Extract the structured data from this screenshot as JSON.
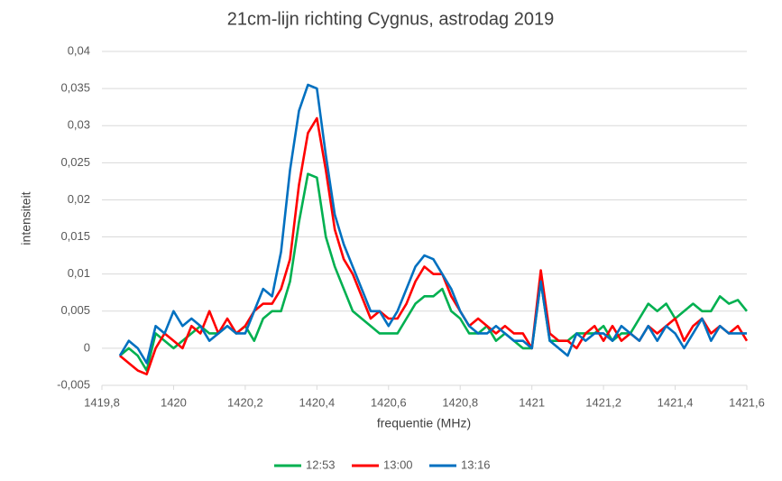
{
  "chart_data": {
    "type": "line",
    "title": "21cm-lijn richting Cygnus, astrodag 2019",
    "x_label": "frequentie (MHz)",
    "y_label": "intensiteit",
    "x": [
      1419.85,
      1419.875,
      1419.9,
      1419.925,
      1419.95,
      1419.975,
      1420,
      1420.025,
      1420.05,
      1420.075,
      1420.1,
      1420.125,
      1420.15,
      1420.175,
      1420.2,
      1420.225,
      1420.25,
      1420.275,
      1420.3,
      1420.325,
      1420.35,
      1420.375,
      1420.4,
      1420.425,
      1420.45,
      1420.475,
      1420.5,
      1420.525,
      1420.55,
      1420.575,
      1420.6,
      1420.625,
      1420.65,
      1420.675,
      1420.7,
      1420.725,
      1420.75,
      1420.775,
      1420.8,
      1420.825,
      1420.85,
      1420.875,
      1420.9,
      1420.925,
      1420.95,
      1420.975,
      1421,
      1421.025,
      1421.05,
      1421.075,
      1421.1,
      1421.125,
      1421.15,
      1421.175,
      1421.2,
      1421.225,
      1421.25,
      1421.275,
      1421.3,
      1421.325,
      1421.35,
      1421.375,
      1421.4,
      1421.425,
      1421.45,
      1421.475,
      1421.5,
      1421.525,
      1421.55,
      1421.575,
      1421.6
    ],
    "series": [
      {
        "name": "12:53",
        "color": "#00b050",
        "values": [
          -0.001,
          0.0,
          -0.001,
          -0.003,
          0.002,
          0.001,
          0.0,
          0.001,
          0.002,
          0.003,
          0.002,
          0.002,
          0.003,
          0.002,
          0.003,
          0.001,
          0.004,
          0.005,
          0.005,
          0.009,
          0.017,
          0.0235,
          0.023,
          0.015,
          0.011,
          0.008,
          0.005,
          0.004,
          0.003,
          0.002,
          0.002,
          0.002,
          0.004,
          0.006,
          0.007,
          0.007,
          0.008,
          0.005,
          0.004,
          0.002,
          0.002,
          0.003,
          0.001,
          0.002,
          0.001,
          0.0,
          0.0,
          0.009,
          0.001,
          0.001,
          0.001,
          0.002,
          0.002,
          0.002,
          0.003,
          0.001,
          0.002,
          0.002,
          0.004,
          0.006,
          0.005,
          0.006,
          0.004,
          0.005,
          0.006,
          0.005,
          0.005,
          0.007,
          0.006,
          0.0065,
          0.005
        ]
      },
      {
        "name": "13:00",
        "color": "#ff0000",
        "values": [
          -0.001,
          -0.002,
          -0.003,
          -0.0035,
          0.0,
          0.002,
          0.001,
          0.0,
          0.003,
          0.002,
          0.005,
          0.002,
          0.004,
          0.002,
          0.003,
          0.005,
          0.006,
          0.006,
          0.008,
          0.012,
          0.022,
          0.029,
          0.031,
          0.024,
          0.016,
          0.012,
          0.01,
          0.007,
          0.004,
          0.005,
          0.004,
          0.004,
          0.006,
          0.009,
          0.011,
          0.01,
          0.01,
          0.007,
          0.005,
          0.003,
          0.004,
          0.003,
          0.002,
          0.003,
          0.002,
          0.002,
          0.0,
          0.0105,
          0.002,
          0.001,
          0.001,
          0.0,
          0.002,
          0.003,
          0.001,
          0.003,
          0.001,
          0.002,
          0.001,
          0.003,
          0.002,
          0.003,
          0.004,
          0.001,
          0.003,
          0.004,
          0.002,
          0.003,
          0.002,
          0.003,
          0.001
        ]
      },
      {
        "name": "13:16",
        "color": "#0070c0",
        "values": [
          -0.001,
          0.001,
          0.0,
          -0.002,
          0.003,
          0.002,
          0.005,
          0.003,
          0.004,
          0.003,
          0.001,
          0.002,
          0.003,
          0.002,
          0.002,
          0.005,
          0.008,
          0.007,
          0.013,
          0.024,
          0.032,
          0.0355,
          0.035,
          0.026,
          0.018,
          0.014,
          0.011,
          0.008,
          0.005,
          0.005,
          0.003,
          0.005,
          0.008,
          0.011,
          0.0125,
          0.012,
          0.01,
          0.008,
          0.005,
          0.003,
          0.002,
          0.002,
          0.003,
          0.002,
          0.001,
          0.001,
          0.0,
          0.009,
          0.001,
          0.0,
          -0.001,
          0.002,
          0.001,
          0.002,
          0.002,
          0.001,
          0.003,
          0.002,
          0.001,
          0.003,
          0.001,
          0.003,
          0.002,
          0.0,
          0.002,
          0.004,
          0.001,
          0.003,
          0.002,
          0.002,
          0.002
        ]
      }
    ],
    "xlim": [
      1419.8,
      1421.6
    ],
    "xticks": [
      {
        "value": 1419.8,
        "label": "1419,8"
      },
      1420,
      {
        "value": 1420.2,
        "label": "1420,2"
      },
      {
        "value": 1420.4,
        "label": "1420,4"
      },
      {
        "value": 1420.6,
        "label": "1420,6"
      },
      {
        "value": 1420.8,
        "label": "1420,8"
      },
      1421,
      {
        "value": 1421.2,
        "label": "1421,2"
      },
      {
        "value": 1421.4,
        "label": "1421,4"
      },
      {
        "value": 1421.6,
        "label": "1421,6"
      }
    ],
    "ylim": [
      -0.005,
      0.04
    ],
    "yticks": [
      {
        "value": -0.005,
        "label": "-0,005"
      },
      0,
      {
        "value": 0.005,
        "label": "0,005"
      },
      {
        "value": 0.01,
        "label": "0,01"
      },
      {
        "value": 0.015,
        "label": "0,015"
      },
      {
        "value": 0.02,
        "label": "0,02"
      },
      {
        "value": 0.025,
        "label": "0,025"
      },
      {
        "value": 0.03,
        "label": "0,03"
      },
      {
        "value": 0.035,
        "label": "0,035"
      },
      {
        "value": 0.04,
        "label": "0,04"
      }
    ],
    "grid": true,
    "legend": "bottom"
  }
}
